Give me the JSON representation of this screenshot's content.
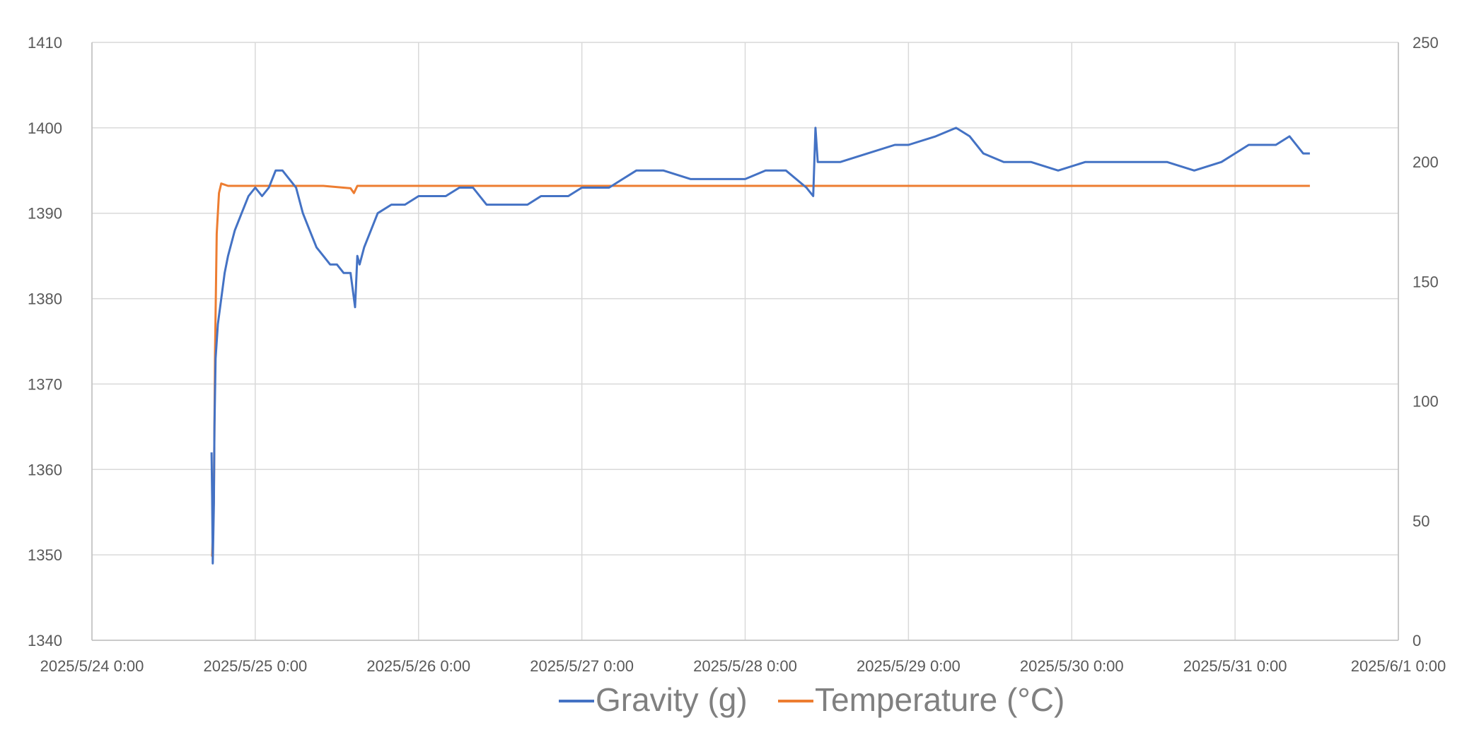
{
  "chart_data": {
    "type": "line",
    "x_axis": {
      "ticks": [
        "2025/5/24 0:00",
        "2025/5/25 0:00",
        "2025/5/26 0:00",
        "2025/5/27 0:00",
        "2025/5/28 0:00",
        "2025/5/29 0:00",
        "2025/5/30 0:00",
        "2025/5/31 0:00",
        "2025/6/1 0:00"
      ],
      "range": [
        "2025/5/24 0:00",
        "2025/6/1 0:00"
      ]
    },
    "y_left": {
      "min": 1340,
      "max": 1410,
      "ticks": [
        "1340",
        "1350",
        "1360",
        "1370",
        "1380",
        "1390",
        "1400",
        "1410"
      ]
    },
    "y_right": {
      "min": 0,
      "max": 250,
      "ticks": [
        "0",
        "50",
        "100",
        "150",
        "200",
        "250"
      ]
    },
    "grid": true,
    "legend_position": "bottom",
    "series": [
      {
        "name": "Gravity (g)",
        "color": "#4472C4",
        "axis": "left",
        "points": [
          [
            "2025/5/24 17:35",
            1362
          ],
          [
            "2025/5/24 17:40",
            1357
          ],
          [
            "2025/5/24 17:45",
            1349
          ],
          [
            "2025/5/24 17:55",
            1356
          ],
          [
            "2025/5/24 18:00",
            1365
          ],
          [
            "2025/5/24 18:10",
            1373
          ],
          [
            "2025/5/24 18:30",
            1377
          ],
          [
            "2025/5/24 19:00",
            1380
          ],
          [
            "2025/5/24 19:30",
            1383
          ],
          [
            "2025/5/24 20:00",
            1385
          ],
          [
            "2025/5/24 21:00",
            1388
          ],
          [
            "2025/5/24 22:00",
            1390
          ],
          [
            "2025/5/24 23:00",
            1392
          ],
          [
            "2025/5/25 0:00",
            1393
          ],
          [
            "2025/5/25 1:00",
            1392
          ],
          [
            "2025/5/25 2:00",
            1393
          ],
          [
            "2025/5/25 3:00",
            1395
          ],
          [
            "2025/5/25 4:00",
            1395
          ],
          [
            "2025/5/25 5:00",
            1394
          ],
          [
            "2025/5/25 6:00",
            1393
          ],
          [
            "2025/5/25 7:00",
            1390
          ],
          [
            "2025/5/25 8:00",
            1388
          ],
          [
            "2025/5/25 9:00",
            1386
          ],
          [
            "2025/5/25 10:00",
            1385
          ],
          [
            "2025/5/25 11:00",
            1384
          ],
          [
            "2025/5/25 12:00",
            1384
          ],
          [
            "2025/5/25 13:00",
            1383
          ],
          [
            "2025/5/25 14:00",
            1383
          ],
          [
            "2025/5/25 14:40",
            1379
          ],
          [
            "2025/5/25 15:00",
            1385
          ],
          [
            "2025/5/25 15:20",
            1384
          ],
          [
            "2025/5/25 16:00",
            1386
          ],
          [
            "2025/5/25 17:00",
            1388
          ],
          [
            "2025/5/25 18:00",
            1390
          ],
          [
            "2025/5/25 20:00",
            1391
          ],
          [
            "2025/5/25 22:00",
            1391
          ],
          [
            "2025/5/26 0:00",
            1392
          ],
          [
            "2025/5/26 2:00",
            1392
          ],
          [
            "2025/5/26 4:00",
            1392
          ],
          [
            "2025/5/26 6:00",
            1393
          ],
          [
            "2025/5/26 8:00",
            1393
          ],
          [
            "2025/5/26 10:00",
            1391
          ],
          [
            "2025/5/26 12:00",
            1391
          ],
          [
            "2025/5/26 14:00",
            1391
          ],
          [
            "2025/5/26 16:00",
            1391
          ],
          [
            "2025/5/26 18:00",
            1392
          ],
          [
            "2025/5/26 20:00",
            1392
          ],
          [
            "2025/5/26 22:00",
            1392
          ],
          [
            "2025/5/27 0:00",
            1393
          ],
          [
            "2025/5/27 2:00",
            1393
          ],
          [
            "2025/5/27 4:00",
            1393
          ],
          [
            "2025/5/27 6:00",
            1394
          ],
          [
            "2025/5/27 8:00",
            1395
          ],
          [
            "2025/5/27 12:00",
            1395
          ],
          [
            "2025/5/27 16:00",
            1394
          ],
          [
            "2025/5/27 20:00",
            1394
          ],
          [
            "2025/5/28 0:00",
            1394
          ],
          [
            "2025/5/28 3:00",
            1395
          ],
          [
            "2025/5/28 6:00",
            1395
          ],
          [
            "2025/5/28 9:00",
            1393
          ],
          [
            "2025/5/28 10:00",
            1392
          ],
          [
            "2025/5/28 10:20",
            1400
          ],
          [
            "2025/5/28 10:40",
            1396
          ],
          [
            "2025/5/28 14:00",
            1396
          ],
          [
            "2025/5/28 18:00",
            1397
          ],
          [
            "2025/5/28 22:00",
            1398
          ],
          [
            "2025/5/29 0:00",
            1398
          ],
          [
            "2025/5/29 4:00",
            1399
          ],
          [
            "2025/5/29 7:00",
            1400
          ],
          [
            "2025/5/29 9:00",
            1399
          ],
          [
            "2025/5/29 11:00",
            1397
          ],
          [
            "2025/5/29 14:00",
            1396
          ],
          [
            "2025/5/29 18:00",
            1396
          ],
          [
            "2025/5/29 22:00",
            1395
          ],
          [
            "2025/5/30 2:00",
            1396
          ],
          [
            "2025/5/30 6:00",
            1396
          ],
          [
            "2025/5/30 10:00",
            1396
          ],
          [
            "2025/5/30 14:00",
            1396
          ],
          [
            "2025/5/30 18:00",
            1395
          ],
          [
            "2025/5/30 22:00",
            1396
          ],
          [
            "2025/5/31 0:00",
            1397
          ],
          [
            "2025/5/31 2:00",
            1398
          ],
          [
            "2025/5/31 4:00",
            1398
          ],
          [
            "2025/5/31 6:00",
            1398
          ],
          [
            "2025/5/31 8:00",
            1399
          ],
          [
            "2025/5/31 9:00",
            1398
          ],
          [
            "2025/5/31 10:00",
            1397
          ],
          [
            "2025/5/31 11:00",
            1397
          ]
        ]
      },
      {
        "name": "Temperature (°C)",
        "color": "#ED7D31",
        "axis": "right",
        "points": [
          [
            "2025/5/24 17:40",
            35
          ],
          [
            "2025/5/24 17:55",
            60
          ],
          [
            "2025/5/24 18:05",
            120
          ],
          [
            "2025/5/24 18:20",
            170
          ],
          [
            "2025/5/24 18:40",
            187
          ],
          [
            "2025/5/24 19:00",
            191
          ],
          [
            "2025/5/24 20:00",
            190
          ],
          [
            "2025/5/25 0:00",
            190
          ],
          [
            "2025/5/25 6:00",
            190
          ],
          [
            "2025/5/25 10:00",
            190
          ],
          [
            "2025/5/25 14:00",
            189
          ],
          [
            "2025/5/25 14:30",
            187
          ],
          [
            "2025/5/25 15:00",
            190
          ],
          [
            "2025/5/25 18:00",
            190
          ],
          [
            "2025/5/26 0:00",
            190
          ],
          [
            "2025/5/26 12:00",
            190
          ],
          [
            "2025/5/27 0:00",
            190
          ],
          [
            "2025/5/27 12:00",
            190
          ],
          [
            "2025/5/28 0:00",
            190
          ],
          [
            "2025/5/28 12:00",
            190
          ],
          [
            "2025/5/29 0:00",
            190
          ],
          [
            "2025/5/29 12:00",
            190
          ],
          [
            "2025/5/30 0:00",
            190
          ],
          [
            "2025/5/30 12:00",
            190
          ],
          [
            "2025/5/31 0:00",
            190
          ],
          [
            "2025/5/31 11:00",
            190
          ]
        ]
      }
    ]
  }
}
